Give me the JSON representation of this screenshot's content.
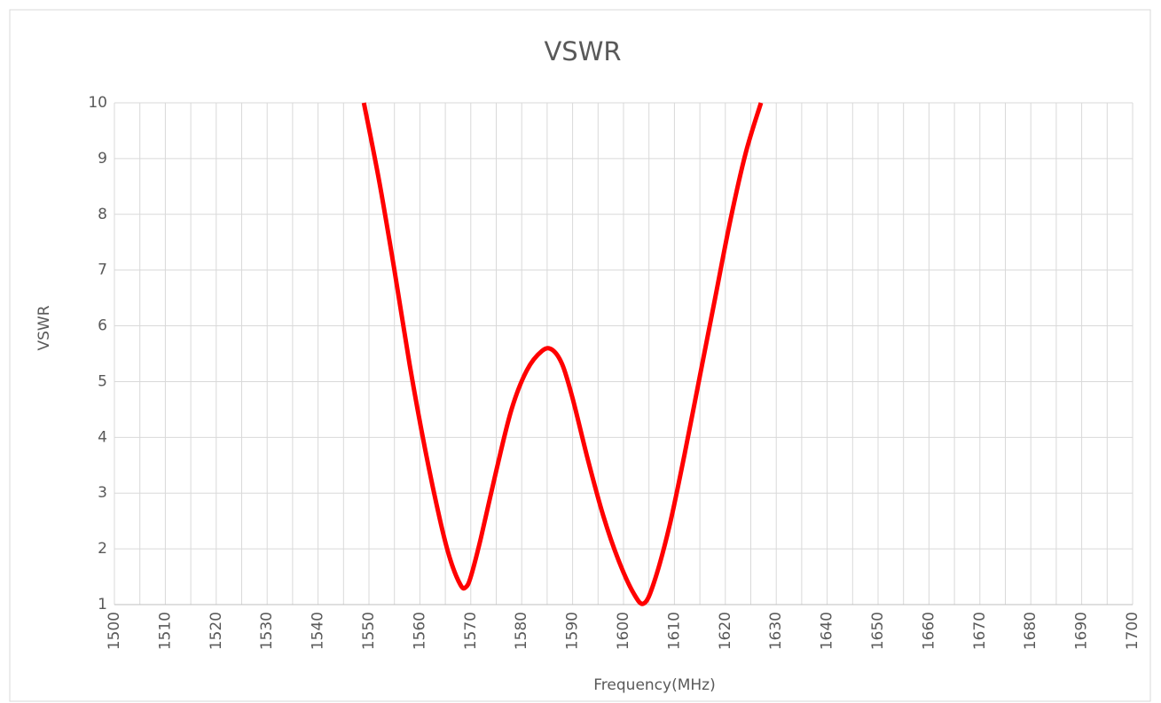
{
  "chart_data": {
    "type": "line",
    "title": "VSWR",
    "x_label": "Frequency(MHz)",
    "y_label": "VSWR",
    "x": [
      1549,
      1552,
      1555,
      1558,
      1561,
      1564,
      1566,
      1568,
      1569,
      1570,
      1572,
      1575,
      1578,
      1581,
      1584,
      1586,
      1588,
      1590,
      1593,
      1596,
      1599,
      1602,
      1604,
      1606,
      1609,
      1612,
      1615,
      1618,
      1621,
      1624,
      1627
    ],
    "series": [
      {
        "name": "VSWR",
        "color": "#ff0000",
        "values": [
          10,
          8.6,
          7.0,
          5.3,
          3.8,
          2.5,
          1.8,
          1.35,
          1.31,
          1.5,
          2.2,
          3.4,
          4.5,
          5.2,
          5.55,
          5.57,
          5.3,
          4.7,
          3.6,
          2.6,
          1.8,
          1.2,
          1.02,
          1.4,
          2.4,
          3.7,
          5.1,
          6.5,
          7.9,
          9.1,
          10
        ]
      }
    ],
    "xlim": [
      1500,
      1700
    ],
    "xticks": [
      1500,
      1510,
      1520,
      1530,
      1540,
      1550,
      1560,
      1570,
      1580,
      1590,
      1600,
      1610,
      1620,
      1630,
      1640,
      1650,
      1660,
      1670,
      1680,
      1690,
      1700
    ],
    "ylim": [
      1,
      10
    ],
    "yticks": [
      1,
      2,
      3,
      4,
      5,
      6,
      7,
      8,
      9,
      10
    ],
    "grid": true,
    "minor_grid": true,
    "legend": false
  }
}
